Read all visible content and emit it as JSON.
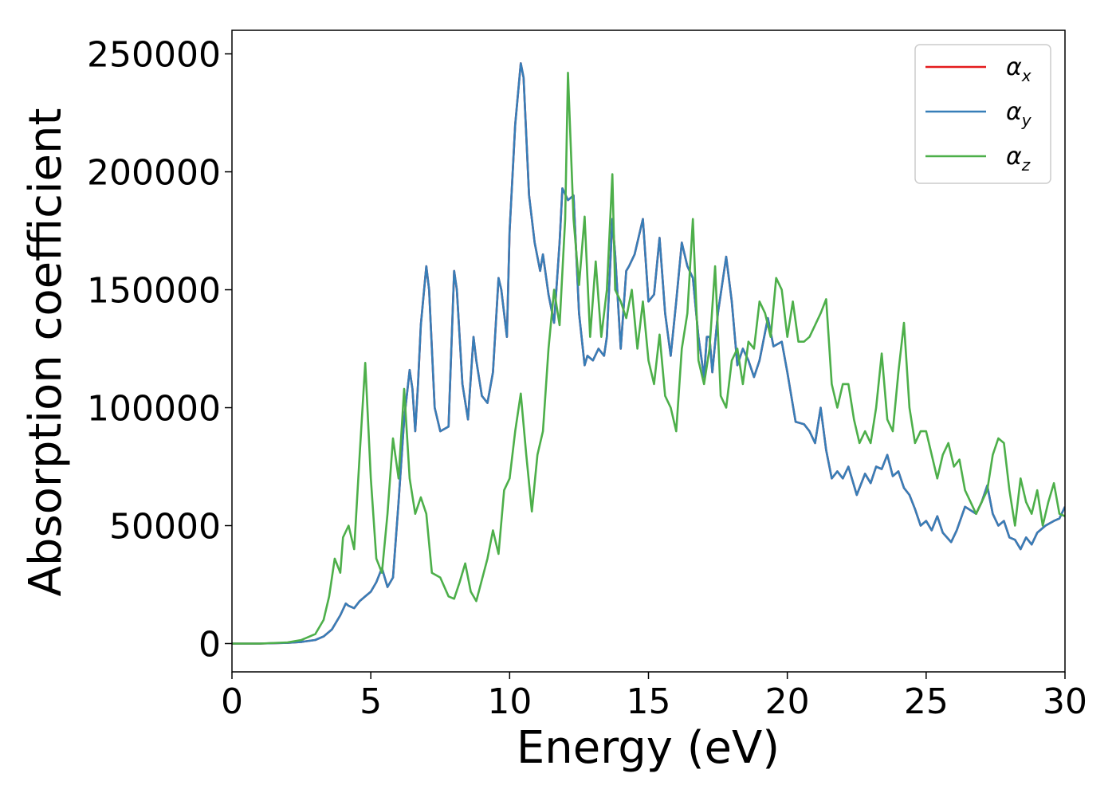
{
  "chart_data": {
    "type": "line",
    "title": "",
    "xlabel": "Energy (eV)",
    "ylabel": "Absorption coefficient",
    "xlim": [
      0,
      30
    ],
    "ylim": [
      -12000,
      260000
    ],
    "xticks": [
      0,
      5,
      10,
      15,
      20,
      25,
      30
    ],
    "xtick_labels": [
      "0",
      "5",
      "10",
      "15",
      "20",
      "25",
      "30"
    ],
    "yticks": [
      0,
      50000,
      100000,
      150000,
      200000,
      250000
    ],
    "ytick_labels": [
      "0",
      "50000",
      "100000",
      "150000",
      "200000",
      "250000"
    ],
    "grid": false,
    "legend_position": "top-right",
    "series": [
      {
        "name": "αx",
        "label_base": "α",
        "label_sub": "x",
        "color": "#e41a1c",
        "x": [
          0,
          1,
          2,
          2.5,
          3,
          3.3,
          3.6,
          3.9,
          4.1,
          4.2,
          4.4,
          4.6,
          4.8,
          5.0,
          5.2,
          5.4,
          5.6,
          5.8,
          6.0,
          6.2,
          6.4,
          6.5,
          6.6,
          6.7,
          6.8,
          7.0,
          7.1,
          7.3,
          7.5,
          7.8,
          8.0,
          8.1,
          8.3,
          8.5,
          8.7,
          8.8,
          9.0,
          9.2,
          9.4,
          9.6,
          9.7,
          9.9,
          10.0,
          10.2,
          10.4,
          10.5,
          10.7,
          10.9,
          11.1,
          11.2,
          11.4,
          11.6,
          11.8,
          11.9,
          12.1,
          12.3,
          12.5,
          12.7,
          12.8,
          13.0,
          13.2,
          13.4,
          13.5,
          13.7,
          13.8,
          14.0,
          14.2,
          14.3,
          14.5,
          14.8,
          15.0,
          15.2,
          15.4,
          15.6,
          15.8,
          16.0,
          16.2,
          16.4,
          16.6,
          16.8,
          17.0,
          17.1,
          17.2,
          17.3,
          17.5,
          17.8,
          18.0,
          18.2,
          18.4,
          18.6,
          18.8,
          19.0,
          19.3,
          19.5,
          19.8,
          20.0,
          20.3,
          20.6,
          20.8,
          21.0,
          21.2,
          21.4,
          21.6,
          21.8,
          22.0,
          22.2,
          22.5,
          22.8,
          23.0,
          23.2,
          23.4,
          23.6,
          23.8,
          24.0,
          24.2,
          24.4,
          24.6,
          24.8,
          25.0,
          25.2,
          25.4,
          25.6,
          25.9,
          26.1,
          26.4,
          26.8,
          27.0,
          27.2,
          27.4,
          27.6,
          27.8,
          28.0,
          28.2,
          28.4,
          28.6,
          28.8,
          29.0,
          29.3,
          29.6,
          29.8,
          30.0
        ],
        "y": [
          0,
          0,
          300,
          700,
          1500,
          3000,
          6000,
          12000,
          17000,
          16000,
          15000,
          18000,
          20000,
          22000,
          26000,
          32000,
          24000,
          28000,
          60000,
          95000,
          116000,
          108000,
          90000,
          110000,
          135000,
          160000,
          150000,
          100000,
          90000,
          92000,
          158000,
          150000,
          110000,
          95000,
          130000,
          120000,
          105000,
          102000,
          115000,
          155000,
          150000,
          130000,
          175000,
          220000,
          246000,
          240000,
          190000,
          170000,
          158000,
          165000,
          148000,
          136000,
          170000,
          193000,
          188000,
          190000,
          140000,
          118000,
          122000,
          120000,
          125000,
          122000,
          130000,
          180000,
          165000,
          125000,
          158000,
          160000,
          165000,
          180000,
          145000,
          148000,
          172000,
          140000,
          122000,
          145000,
          170000,
          160000,
          155000,
          130000,
          113000,
          130000,
          130000,
          115000,
          140000,
          164000,
          145000,
          118000,
          125000,
          120000,
          113000,
          120000,
          138000,
          126000,
          128000,
          115000,
          94000,
          93000,
          90000,
          85000,
          100000,
          82000,
          70000,
          73000,
          70000,
          75000,
          63000,
          72000,
          68000,
          75000,
          74000,
          80000,
          71000,
          73000,
          66000,
          63000,
          57000,
          50000,
          52000,
          48000,
          54000,
          47000,
          43000,
          48000,
          58000,
          55000,
          60000,
          67000,
          55000,
          50000,
          52000,
          45000,
          44000,
          40000,
          45000,
          42000,
          47000,
          50000,
          52000,
          53000,
          58000
        ]
      },
      {
        "name": "αy",
        "label_base": "α",
        "label_sub": "y",
        "color": "#377eb8",
        "x": [
          0,
          1,
          2,
          2.5,
          3,
          3.3,
          3.6,
          3.9,
          4.1,
          4.2,
          4.4,
          4.6,
          4.8,
          5.0,
          5.2,
          5.4,
          5.6,
          5.8,
          6.0,
          6.2,
          6.4,
          6.5,
          6.6,
          6.7,
          6.8,
          7.0,
          7.1,
          7.3,
          7.5,
          7.8,
          8.0,
          8.1,
          8.3,
          8.5,
          8.7,
          8.8,
          9.0,
          9.2,
          9.4,
          9.6,
          9.7,
          9.9,
          10.0,
          10.2,
          10.4,
          10.5,
          10.7,
          10.9,
          11.1,
          11.2,
          11.4,
          11.6,
          11.8,
          11.9,
          12.1,
          12.3,
          12.5,
          12.7,
          12.8,
          13.0,
          13.2,
          13.4,
          13.5,
          13.7,
          13.8,
          14.0,
          14.2,
          14.3,
          14.5,
          14.8,
          15.0,
          15.2,
          15.4,
          15.6,
          15.8,
          16.0,
          16.2,
          16.4,
          16.6,
          16.8,
          17.0,
          17.1,
          17.2,
          17.3,
          17.5,
          17.8,
          18.0,
          18.2,
          18.4,
          18.6,
          18.8,
          19.0,
          19.3,
          19.5,
          19.8,
          20.0,
          20.3,
          20.6,
          20.8,
          21.0,
          21.2,
          21.4,
          21.6,
          21.8,
          22.0,
          22.2,
          22.5,
          22.8,
          23.0,
          23.2,
          23.4,
          23.6,
          23.8,
          24.0,
          24.2,
          24.4,
          24.6,
          24.8,
          25.0,
          25.2,
          25.4,
          25.6,
          25.9,
          26.1,
          26.4,
          26.8,
          27.0,
          27.2,
          27.4,
          27.6,
          27.8,
          28.0,
          28.2,
          28.4,
          28.6,
          28.8,
          29.0,
          29.3,
          29.6,
          29.8,
          30.0
        ],
        "y": [
          0,
          0,
          300,
          700,
          1500,
          3000,
          6000,
          12000,
          17000,
          16000,
          15000,
          18000,
          20000,
          22000,
          26000,
          32000,
          24000,
          28000,
          60000,
          95000,
          116000,
          108000,
          90000,
          110000,
          135000,
          160000,
          150000,
          100000,
          90000,
          92000,
          158000,
          150000,
          110000,
          95000,
          130000,
          120000,
          105000,
          102000,
          115000,
          155000,
          150000,
          130000,
          175000,
          220000,
          246000,
          240000,
          190000,
          170000,
          158000,
          165000,
          148000,
          136000,
          170000,
          193000,
          188000,
          190000,
          140000,
          118000,
          122000,
          120000,
          125000,
          122000,
          130000,
          180000,
          165000,
          125000,
          158000,
          160000,
          165000,
          180000,
          145000,
          148000,
          172000,
          140000,
          122000,
          145000,
          170000,
          160000,
          155000,
          130000,
          113000,
          130000,
          130000,
          115000,
          140000,
          164000,
          145000,
          118000,
          125000,
          120000,
          113000,
          120000,
          138000,
          126000,
          128000,
          115000,
          94000,
          93000,
          90000,
          85000,
          100000,
          82000,
          70000,
          73000,
          70000,
          75000,
          63000,
          72000,
          68000,
          75000,
          74000,
          80000,
          71000,
          73000,
          66000,
          63000,
          57000,
          50000,
          52000,
          48000,
          54000,
          47000,
          43000,
          48000,
          58000,
          55000,
          60000,
          67000,
          55000,
          50000,
          52000,
          45000,
          44000,
          40000,
          45000,
          42000,
          47000,
          50000,
          52000,
          53000,
          58000
        ]
      },
      {
        "name": "αz",
        "label_base": "α",
        "label_sub": "z",
        "color": "#4daf4a",
        "x": [
          0,
          1,
          2,
          2.5,
          3,
          3.3,
          3.5,
          3.7,
          3.9,
          4.0,
          4.2,
          4.4,
          4.6,
          4.8,
          5.0,
          5.2,
          5.4,
          5.6,
          5.8,
          6.0,
          6.2,
          6.4,
          6.6,
          6.8,
          7.0,
          7.2,
          7.5,
          7.8,
          8.0,
          8.2,
          8.4,
          8.6,
          8.8,
          9.0,
          9.2,
          9.4,
          9.6,
          9.8,
          10.0,
          10.2,
          10.4,
          10.6,
          10.8,
          11.0,
          11.2,
          11.4,
          11.6,
          11.8,
          12.0,
          12.1,
          12.3,
          12.5,
          12.7,
          12.9,
          13.1,
          13.3,
          13.5,
          13.7,
          13.8,
          14.0,
          14.2,
          14.4,
          14.6,
          14.8,
          15.0,
          15.2,
          15.4,
          15.6,
          15.8,
          16.0,
          16.2,
          16.4,
          16.6,
          16.8,
          17.0,
          17.2,
          17.4,
          17.6,
          17.8,
          18.0,
          18.2,
          18.4,
          18.6,
          18.8,
          19.0,
          19.2,
          19.4,
          19.6,
          19.8,
          20.0,
          20.2,
          20.4,
          20.6,
          20.8,
          21.0,
          21.2,
          21.4,
          21.6,
          21.8,
          22.0,
          22.2,
          22.4,
          22.6,
          22.8,
          23.0,
          23.2,
          23.4,
          23.6,
          23.8,
          24.0,
          24.2,
          24.4,
          24.6,
          24.8,
          25.0,
          25.2,
          25.4,
          25.6,
          25.8,
          26.0,
          26.2,
          26.4,
          26.6,
          26.8,
          27.0,
          27.2,
          27.4,
          27.6,
          27.8,
          28.0,
          28.2,
          28.4,
          28.6,
          28.8,
          29.0,
          29.2,
          29.4,
          29.6,
          29.8,
          30.0
        ],
        "y": [
          0,
          0,
          500,
          1500,
          4000,
          10000,
          20000,
          36000,
          30000,
          45000,
          50000,
          40000,
          80000,
          119000,
          70000,
          36000,
          30000,
          55000,
          87000,
          70000,
          108000,
          70000,
          55000,
          62000,
          55000,
          30000,
          28000,
          20000,
          19000,
          26000,
          34000,
          22000,
          18000,
          27000,
          36000,
          48000,
          38000,
          65000,
          70000,
          90000,
          106000,
          80000,
          56000,
          80000,
          90000,
          125000,
          150000,
          135000,
          180000,
          242000,
          180000,
          152000,
          181000,
          130000,
          162000,
          130000,
          150000,
          199000,
          150000,
          145000,
          138000,
          150000,
          125000,
          145000,
          120000,
          110000,
          131000,
          105000,
          100000,
          90000,
          125000,
          140000,
          180000,
          120000,
          110000,
          125000,
          160000,
          105000,
          100000,
          120000,
          125000,
          110000,
          128000,
          125000,
          145000,
          140000,
          130000,
          155000,
          150000,
          130000,
          145000,
          128000,
          128000,
          130000,
          135000,
          140000,
          146000,
          110000,
          100000,
          110000,
          110000,
          95000,
          85000,
          90000,
          85000,
          100000,
          123000,
          95000,
          90000,
          115000,
          136000,
          100000,
          85000,
          90000,
          90000,
          80000,
          70000,
          80000,
          85000,
          75000,
          78000,
          65000,
          60000,
          55000,
          60000,
          65000,
          80000,
          87000,
          85000,
          65000,
          50000,
          70000,
          60000,
          55000,
          65000,
          50000,
          60000,
          68000,
          55000,
          54000
        ]
      }
    ]
  }
}
